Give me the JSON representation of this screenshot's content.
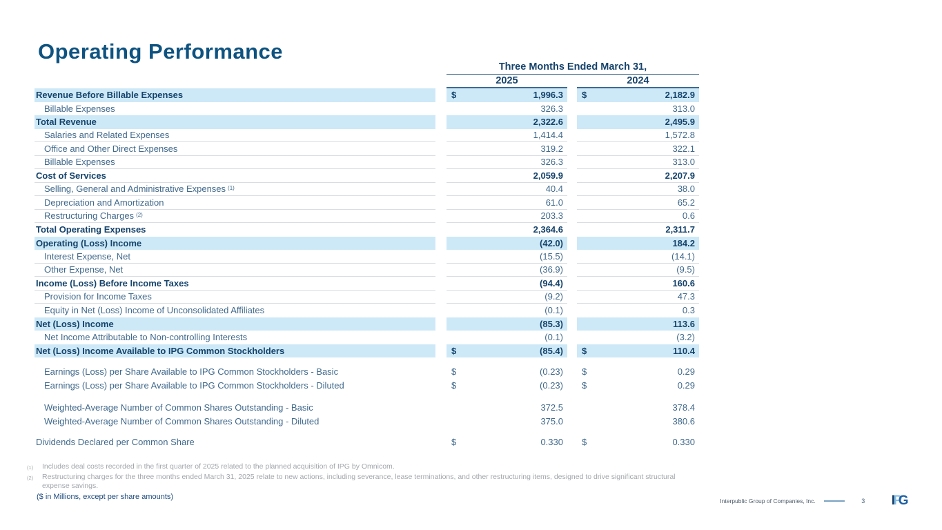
{
  "title": "Operating Performance",
  "table": {
    "period_header": "Three Months Ended March 31,",
    "col_headers": {
      "y2025": "2025",
      "y2024": "2024"
    },
    "currency_symbol": "$",
    "rows": [
      {
        "label": "Revenue Before Billable Expenses",
        "bold": true,
        "highlight": true,
        "dollar": true,
        "indent": false,
        "v2025": "1,996.3",
        "v2024": "2,182.9"
      },
      {
        "label": "Billable Expenses",
        "indent": true,
        "v2025": "326.3",
        "v2024": "313.0"
      },
      {
        "label": "Total Revenue",
        "bold": true,
        "highlight": true,
        "v2025": "2,322.6",
        "v2024": "2,495.9"
      },
      {
        "label": "Salaries and Related Expenses",
        "indent": true,
        "v2025": "1,414.4",
        "v2024": "1,572.8"
      },
      {
        "label": "Office and Other Direct Expenses",
        "indent": true,
        "v2025": "319.2",
        "v2024": "322.1"
      },
      {
        "label": "Billable Expenses",
        "indent": true,
        "v2025": "326.3",
        "v2024": "313.0"
      },
      {
        "label": "Cost of Services",
        "bold": true,
        "v2025": "2,059.9",
        "v2024": "2,207.9"
      },
      {
        "label": "Selling, General and Administrative Expenses",
        "sup": "(1)",
        "indent": true,
        "v2025": "40.4",
        "v2024": "38.0"
      },
      {
        "label": "Depreciation and Amortization",
        "indent": true,
        "v2025": "61.0",
        "v2024": "65.2"
      },
      {
        "label": "Restructuring Charges",
        "sup": "(2)",
        "indent": true,
        "v2025": "203.3",
        "v2024": "0.6"
      },
      {
        "label": "Total Operating Expenses",
        "bold": true,
        "v2025": "2,364.6",
        "v2024": "2,311.7"
      },
      {
        "label": "Operating (Loss) Income",
        "bold": true,
        "highlight": true,
        "v2025": "(42.0)",
        "v2024": "184.2"
      },
      {
        "label": "Interest Expense, Net",
        "indent": true,
        "v2025": "(15.5)",
        "v2024": "(14.1)"
      },
      {
        "label": "Other Expense, Net",
        "indent": true,
        "v2025": "(36.9)",
        "v2024": "(9.5)"
      },
      {
        "label": "Income (Loss) Before Income Taxes",
        "bold": true,
        "v2025": "(94.4)",
        "v2024": "160.6"
      },
      {
        "label": "Provision for Income Taxes",
        "indent": true,
        "v2025": "(9.2)",
        "v2024": "47.3"
      },
      {
        "label": "Equity in Net (Loss) Income of Unconsolidated Affiliates",
        "indent": true,
        "v2025": "(0.1)",
        "v2024": "0.3"
      },
      {
        "label": "Net (Loss) Income",
        "bold": true,
        "highlight": true,
        "v2025": "(85.3)",
        "v2024": "113.6"
      },
      {
        "label": "Net Income Attributable to Non-controlling Interests",
        "indent": true,
        "v2025": "(0.1)",
        "v2024": "(3.2)"
      },
      {
        "label": "Net (Loss) Income Available to IPG Common Stockholders",
        "bold": true,
        "highlight": true,
        "dollar": true,
        "v2025": "(85.4)",
        "v2024": "110.4"
      }
    ],
    "eps_rows": [
      {
        "label": "Earnings (Loss) per Share Available to IPG Common Stockholders - Basic",
        "indent": true,
        "dollar": true,
        "v2025": "(0.23)",
        "v2024": "0.29"
      },
      {
        "label": "Earnings (Loss) per Share Available to IPG Common Stockholders - Diluted",
        "indent": true,
        "dollar": true,
        "v2025": "(0.23)",
        "v2024": "0.29"
      }
    ],
    "share_rows": [
      {
        "label": "Weighted-Average Number of Common Shares Outstanding - Basic",
        "indent": true,
        "v2025": "372.5",
        "v2024": "378.4"
      },
      {
        "label": "Weighted-Average Number of Common Shares Outstanding - Diluted",
        "indent": true,
        "v2025": "375.0",
        "v2024": "380.6"
      }
    ],
    "dividend_rows": [
      {
        "label": "Dividends Declared per Common Share",
        "dollar": true,
        "v2025": "0.330",
        "v2024": "0.330"
      }
    ]
  },
  "footnotes": [
    {
      "sup": "(1)",
      "text": "Includes deal costs recorded in the first quarter of 2025 related to the planned acquisition of IPG by Omnicom."
    },
    {
      "sup": "(2)",
      "text": "Restructuring charges for the three months ended March 31, 2025 relate to new actions, including severance, lease terminations, and other restructuring items, designed to drive significant structural expense savings."
    }
  ],
  "millions_note": "($ in Millions, except per share amounts)",
  "footer": {
    "company": "Interpublic Group of Companies, Inc.",
    "page_number": "3",
    "logo": {
      "letter_1": "I",
      "letter_2": "P",
      "letter_3": "G"
    }
  },
  "colors": {
    "title_blue": "#0e5380",
    "bold_navy": "#15436b",
    "regular_blue": "#40698c",
    "row_highlight": "#cde9f7",
    "year_underline": "#3d6b94",
    "separator_gray": "#d9dde1",
    "footnote_gray": "#a2a6ab",
    "logo_dark": "#123a66",
    "logo_light": "#85bde4",
    "logo_mid": "#1d5fa5"
  }
}
